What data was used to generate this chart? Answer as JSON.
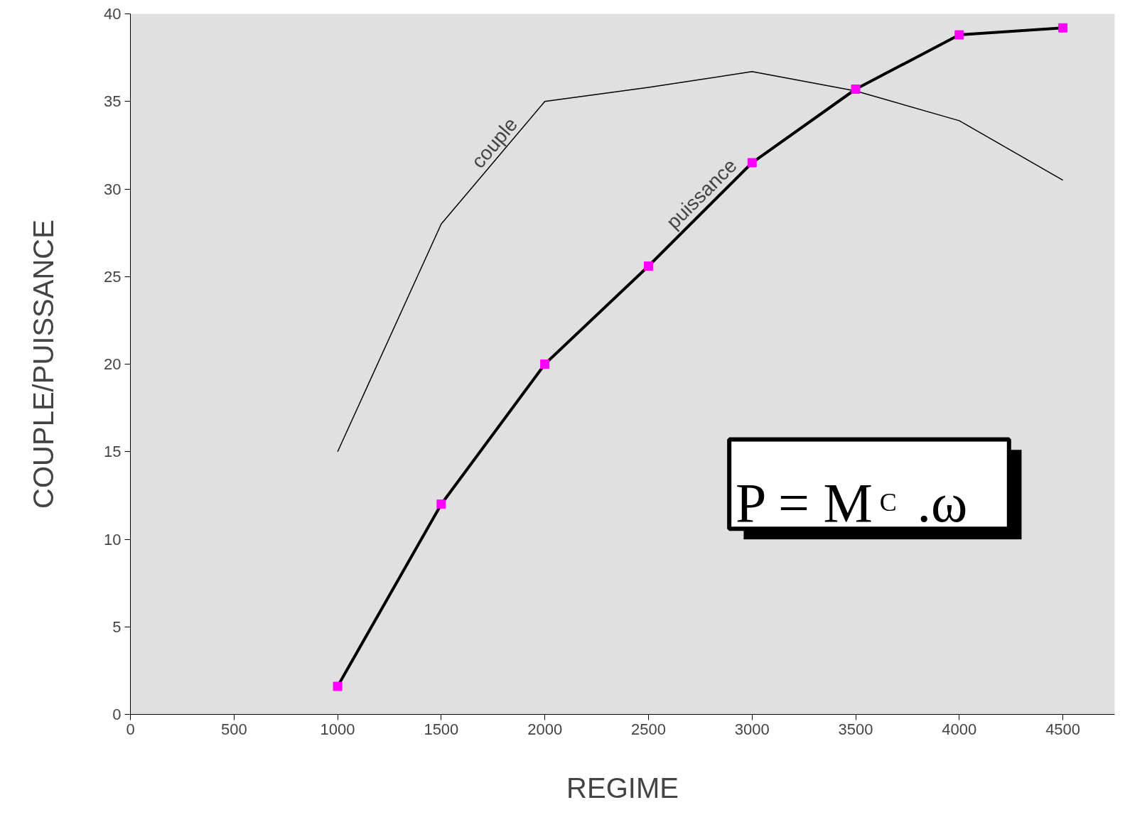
{
  "chart_data": {
    "type": "line",
    "xlabel": "REGIME",
    "ylabel": "COUPLE/PUISSANCE",
    "x": [
      1000,
      1500,
      2000,
      2500,
      3000,
      3500,
      4000,
      4500
    ],
    "series": [
      {
        "name": "couple",
        "color": "#000000",
        "marker": "none",
        "values": [
          15.0,
          28.0,
          35.0,
          35.8,
          36.7,
          35.6,
          33.9,
          30.5
        ]
      },
      {
        "name": "puissance",
        "color": "#000000",
        "marker": "square",
        "values": [
          1.6,
          12.0,
          20.0,
          25.6,
          31.5,
          35.7,
          38.8,
          39.2
        ]
      }
    ],
    "xlim": [
      0,
      4750
    ],
    "xticks": [
      0,
      500,
      1000,
      1500,
      2000,
      2500,
      3000,
      3500,
      4000,
      4500
    ],
    "ylim": [
      0,
      40
    ],
    "yticks": [
      0,
      5,
      10,
      15,
      20,
      25,
      30,
      35,
      40
    ],
    "annotations": [
      "P = M$_{C}$ .ω"
    ]
  }
}
